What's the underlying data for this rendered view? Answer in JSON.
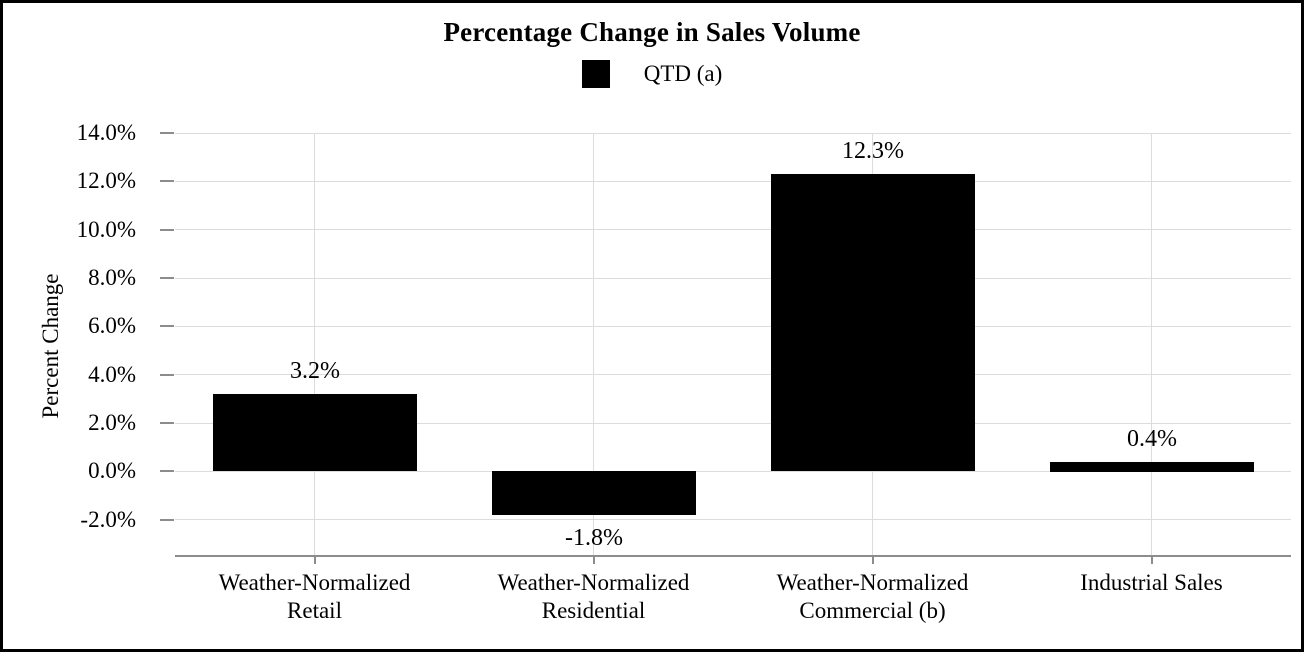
{
  "chart_data": {
    "type": "bar",
    "title": "Percentage Change in Sales Volume",
    "ylabel": "Percent Change",
    "xlabel": "",
    "legend": {
      "label": "QTD (a)",
      "swatch_color": "#000000",
      "position": "top-center"
    },
    "categories": [
      {
        "lines": [
          "Weather-Normalized",
          "Retail"
        ]
      },
      {
        "lines": [
          "Weather-Normalized",
          "Residential"
        ]
      },
      {
        "lines": [
          "Weather-Normalized",
          "Commercial (b)"
        ]
      },
      {
        "lines": [
          "Industrial Sales"
        ]
      }
    ],
    "series": [
      {
        "name": "QTD (a)",
        "color": "#000000",
        "values": [
          3.2,
          -1.8,
          12.3,
          0.4
        ],
        "value_labels": [
          "3.2%",
          "-1.8%",
          "12.3%",
          "0.4%"
        ]
      }
    ],
    "ylim": [
      -3.5,
      14.0
    ],
    "y_ticks": [
      {
        "value": 14.0,
        "label": "14.0%"
      },
      {
        "value": 12.0,
        "label": "12.0%"
      },
      {
        "value": 10.0,
        "label": "10.0%"
      },
      {
        "value": 8.0,
        "label": "8.0%"
      },
      {
        "value": 6.0,
        "label": "6.0%"
      },
      {
        "value": 4.0,
        "label": "4.0%"
      },
      {
        "value": 2.0,
        "label": "2.0%"
      },
      {
        "value": 0.0,
        "label": "0.0%"
      },
      {
        "value": -2.0,
        "label": "-2.0%"
      }
    ],
    "grid": true,
    "colors": {
      "bar": "#000000",
      "gridline": "#dcdcdc",
      "axis": "#8c8c8c",
      "text": "#000000",
      "background": "#ffffff",
      "frame": "#000000"
    }
  }
}
